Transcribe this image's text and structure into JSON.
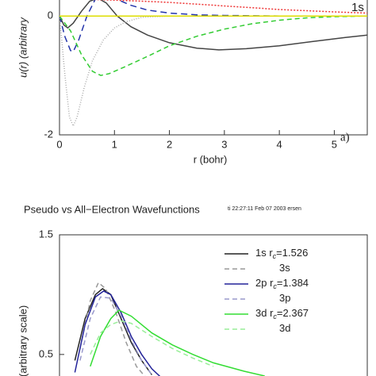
{
  "chart_data": [
    {
      "type": "line",
      "ylabel": "u(r) (arbitrary",
      "xlabel": "r (bohr)",
      "annotation": "a)",
      "legend_entry": "1s",
      "xlim": [
        0,
        5.6
      ],
      "ylim": [
        -2,
        0.27
      ],
      "xticks": [
        0,
        1,
        2,
        3,
        4,
        5
      ],
      "yticks": [
        0,
        -2
      ],
      "series": [
        {
          "color": "#444444",
          "dash": "solid",
          "x": [
            0,
            0.08,
            0.15,
            0.25,
            0.4,
            0.55,
            0.7,
            0.85,
            1.05,
            1.3,
            1.6,
            2,
            2.5,
            2.9,
            3.4,
            4,
            4.6,
            5.2,
            5.6
          ],
          "values": [
            0,
            -0.15,
            -0.2,
            -0.12,
            0.08,
            0.25,
            0.3,
            0.22,
            0,
            -0.18,
            -0.32,
            -0.45,
            -0.54,
            -0.57,
            -0.55,
            -0.5,
            -0.43,
            -0.36,
            -0.32
          ]
        },
        {
          "color": "#2233aa",
          "dash": "8,5",
          "x": [
            0,
            0.1,
            0.2,
            0.25,
            0.35,
            0.5,
            0.65,
            0.8,
            1,
            1.3,
            1.6,
            2,
            2.5,
            3,
            4,
            5,
            5.6
          ],
          "values": [
            0,
            -0.35,
            -0.58,
            -0.6,
            -0.4,
            0,
            0.28,
            0.35,
            0.3,
            0.18,
            0.1,
            0.05,
            0.02,
            0.01,
            0,
            0,
            0
          ]
        },
        {
          "color": "#33cc33",
          "dash": "6,4",
          "x": [
            0,
            0.2,
            0.4,
            0.6,
            0.75,
            0.9,
            1.2,
            1.6,
            2,
            2.5,
            3,
            3.5,
            4,
            4.5,
            5,
            5.6
          ],
          "values": [
            0,
            -0.25,
            -0.65,
            -0.93,
            -1.0,
            -0.97,
            -0.85,
            -0.68,
            -0.5,
            -0.34,
            -0.22,
            -0.13,
            -0.07,
            -0.03,
            -0.01,
            0
          ]
        },
        {
          "color": "#aaaaaa",
          "dash": "1,2",
          "x": [
            0,
            0.1,
            0.18,
            0.25,
            0.32,
            0.45,
            0.6,
            0.8,
            1,
            1.2,
            1.5,
            2
          ],
          "values": [
            0,
            -1.0,
            -1.7,
            -1.85,
            -1.7,
            -1.2,
            -0.75,
            -0.4,
            -0.2,
            -0.1,
            -0.02,
            0
          ]
        },
        {
          "color": "#ee3333",
          "dash": "2,2",
          "x": [
            0.4,
            0.6,
            0.9,
            1.2,
            1.5,
            2,
            2.5,
            3,
            3.5,
            4,
            4.5,
            5,
            5.6
          ],
          "values": [
            0.3,
            0.28,
            0.27,
            0.26,
            0.25,
            0.23,
            0.2,
            0.17,
            0.14,
            0.11,
            0.09,
            0.07,
            0.05
          ]
        },
        {
          "color": "#dddd00",
          "dash": "solid",
          "x": [
            0,
            5.6
          ],
          "values": [
            0,
            0
          ]
        }
      ]
    },
    {
      "type": "line",
      "title": "Pseudo vs All−Electron Wavefunctions",
      "stamp": "ti 22:27:11 Feb 07 2003 ersen",
      "ylabel": "(arbitrary scale)",
      "xlim": [
        0,
        3
      ],
      "ylim": [
        0.32,
        1.5
      ],
      "yticks": [
        1.5,
        0.5
      ],
      "series": [
        {
          "label_parts": [
            "1s r",
            "c",
            "=1.526"
          ],
          "color": "#222222",
          "dash": "solid",
          "x": [
            0.15,
            0.25,
            0.35,
            0.42,
            0.5,
            0.6,
            0.7,
            0.8,
            0.9
          ],
          "values": [
            0.45,
            0.8,
            1.0,
            1.05,
            1.0,
            0.8,
            0.6,
            0.45,
            0.33
          ]
        },
        {
          "label_parts": [
            "3s"
          ],
          "color": "#999999",
          "dash": "6,4",
          "x": [
            0.2,
            0.3,
            0.38,
            0.45,
            0.55,
            0.65,
            0.75,
            0.85
          ],
          "values": [
            0.55,
            0.95,
            1.1,
            1.05,
            0.85,
            0.6,
            0.4,
            0.3
          ]
        },
        {
          "label_parts": [
            "2p r",
            "c",
            "=1.384"
          ],
          "color": "#222299",
          "dash": "solid",
          "x": [
            0.15,
            0.25,
            0.35,
            0.43,
            0.5,
            0.6,
            0.7,
            0.8,
            0.9,
            1.0
          ],
          "values": [
            0.35,
            0.75,
            0.98,
            1.03,
            1.0,
            0.85,
            0.65,
            0.5,
            0.38,
            0.3
          ]
        },
        {
          "label_parts": [
            "3p"
          ],
          "color": "#9999cc",
          "dash": "6,4",
          "x": [
            0.2,
            0.3,
            0.4,
            0.5,
            0.6,
            0.7,
            0.8,
            0.9
          ],
          "values": [
            0.45,
            0.8,
            0.98,
            0.97,
            0.82,
            0.62,
            0.45,
            0.33
          ]
        },
        {
          "label_parts": [
            "3d r",
            "c",
            "=2.367"
          ],
          "color": "#33dd33",
          "dash": "solid",
          "x": [
            0.3,
            0.4,
            0.5,
            0.58,
            0.7,
            0.9,
            1.1,
            1.3,
            1.5,
            1.8,
            2.0
          ],
          "values": [
            0.4,
            0.65,
            0.8,
            0.87,
            0.82,
            0.68,
            0.58,
            0.5,
            0.43,
            0.36,
            0.32
          ]
        },
        {
          "label_parts": [
            "3d"
          ],
          "color": "#99ee99",
          "dash": "6,4",
          "x": [
            0.3,
            0.4,
            0.5,
            0.6,
            0.7,
            0.9,
            1.1,
            1.3,
            1.5
          ],
          "values": [
            0.5,
            0.68,
            0.75,
            0.78,
            0.76,
            0.65,
            0.55,
            0.47,
            0.4
          ]
        }
      ]
    }
  ]
}
